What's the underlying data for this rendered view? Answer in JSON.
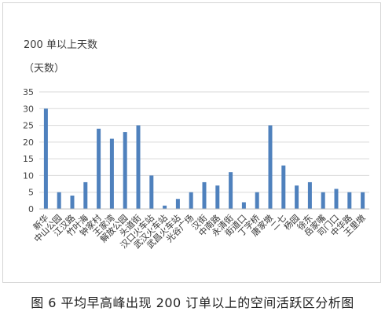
{
  "chart_data": {
    "type": "bar",
    "title": "200 单以上天数",
    "ylabel": "（天数）",
    "xlabel": "",
    "categories": [
      "新华",
      "中山公园",
      "江汉路",
      "竹叶海",
      "钟家村",
      "王家湾",
      "解放公园",
      "头道街",
      "汉口火车站",
      "武汉火车站",
      "武昌火车站",
      "光谷广场",
      "汉街",
      "中南路",
      "永清街",
      "街道口",
      "丁字桥",
      "唐家墩",
      "二七",
      "杨园",
      "徐东",
      "岳家嘴",
      "司门口",
      "中华路",
      "王里墩"
    ],
    "values": [
      30,
      5,
      4,
      8,
      24,
      21,
      23,
      25,
      10,
      1,
      3,
      5,
      8,
      7,
      11,
      2,
      5,
      25,
      13,
      7,
      8,
      5,
      6,
      5,
      5
    ],
    "ylim": [
      0,
      35
    ],
    "yticks": [
      0,
      5,
      10,
      15,
      20,
      25,
      30,
      35
    ],
    "grid": true,
    "bar_color": "#4f81bd",
    "grid_color": "#d9d9d9"
  },
  "caption": "图 6  平均早高峰出现 200 订单以上的空间活跃区分析图"
}
